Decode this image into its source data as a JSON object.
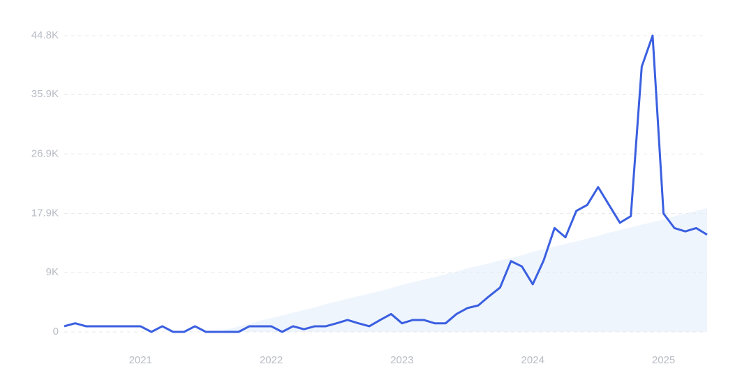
{
  "chart_data": {
    "type": "line",
    "categories": [
      null,
      null,
      null,
      null,
      null,
      null,
      null,
      "2021",
      null,
      null,
      null,
      null,
      null,
      null,
      null,
      null,
      null,
      null,
      null,
      "2022",
      null,
      null,
      null,
      null,
      null,
      null,
      null,
      null,
      null,
      null,
      null,
      "2023",
      null,
      null,
      null,
      null,
      null,
      null,
      null,
      null,
      null,
      null,
      null,
      "2024",
      null,
      null,
      null,
      null,
      null,
      null,
      null,
      null,
      null,
      null,
      null,
      "2025",
      null,
      null,
      null,
      null
    ],
    "series": [
      {
        "color": "#3a5fe0",
        "values": [
          0.85,
          1.3,
          0.85,
          0.85,
          0.85,
          0.85,
          0.85,
          0.85,
          0,
          0.85,
          0,
          0,
          0.85,
          0,
          0,
          0,
          0,
          0.85,
          0.85,
          0.85,
          0,
          0.85,
          0.4,
          0.85,
          0.85,
          1.3,
          1.8,
          1.3,
          0.85,
          1.8,
          2.7,
          1.3,
          1.8,
          1.8,
          1.3,
          1.3,
          2.7,
          3.6,
          4.0,
          5.4,
          6.7,
          10.7,
          9.9,
          7.2,
          10.8,
          15.7,
          14.3,
          18.3,
          19.2,
          21.9,
          19.2,
          16.5,
          17.5,
          40.1,
          44.8,
          17.9,
          15.7,
          15.2,
          15.7,
          14.7
        ]
      }
    ],
    "trend_values": [
      null,
      null,
      null,
      null,
      null,
      null,
      null,
      null,
      null,
      null,
      null,
      null,
      null,
      null,
      0,
      0.4,
      0.8,
      1.2,
      1.7,
      2.1,
      2.5,
      2.9,
      3.3,
      3.7,
      4.2,
      4.6,
      5.0,
      5.4,
      5.8,
      6.2,
      6.6,
      7.1,
      7.5,
      7.9,
      8.3,
      8.7,
      9.1,
      9.6,
      10.0,
      10.4,
      10.8,
      11.2,
      11.6,
      12.1,
      12.5,
      12.9,
      13.3,
      13.7,
      14.1,
      14.5,
      15.0,
      15.4,
      15.8,
      16.2,
      16.6,
      17.0,
      17.5,
      17.9,
      18.3,
      18.7
    ],
    "trend_color": "#dce8fb",
    "ylim": [
      0,
      44.8
    ],
    "yticks": [
      0,
      {
        "value": 9,
        "label": "9K"
      },
      {
        "value": 17.9,
        "label": "17.9K"
      },
      {
        "value": 26.9,
        "label": "26.9K"
      },
      {
        "value": 35.9,
        "label": "35.9K"
      },
      {
        "value": 44.8,
        "label": "44.8K"
      }
    ],
    "grid": true
  }
}
